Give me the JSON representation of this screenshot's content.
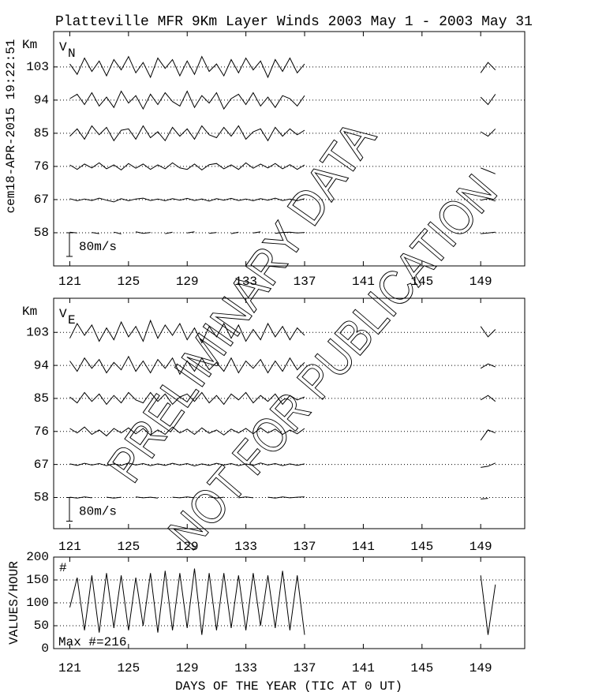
{
  "chart_data": [
    {
      "type": "line",
      "title": "Platteville MFR 9Km Layer Winds 2003 May  1 - 2003 May 31",
      "stamp": "cem18-APR-2015 19:22:51",
      "annotations": [
        "PRELIMINARY DATA",
        "NOT FOR PUBLICATION"
      ],
      "ylabel": "Km",
      "panel_label": "V",
      "panel_label_sub": "N",
      "scale_bar": {
        "value": 80,
        "label": "80m/s"
      },
      "xlim": [
        119.9,
        152
      ],
      "xticks": [
        121,
        125,
        129,
        133,
        137,
        141,
        145,
        149
      ],
      "ylim": [
        49,
        112.6
      ],
      "yticks": [
        58,
        67,
        76,
        85,
        94,
        103
      ],
      "grid": true,
      "x": [
        121,
        121.5,
        122,
        122.5,
        123,
        123.5,
        124,
        124.5,
        125,
        125.5,
        126,
        126.5,
        127,
        127.5,
        128,
        128.5,
        129,
        129.5,
        130,
        130.5,
        131,
        131.5,
        132,
        132.5,
        133,
        133.5,
        134,
        134.5,
        135,
        135.5,
        136,
        136.5,
        137,
        143,
        149,
        149.5,
        150
      ],
      "series": [
        {
          "color": "#000000",
          "values": [
            2,
            -1,
            null,
            1,
            -3,
            null,
            2,
            -4,
            null,
            3,
            -2,
            1,
            null,
            -3,
            2,
            null,
            -1,
            3,
            null,
            -2,
            1,
            null,
            -3,
            2,
            null,
            -1,
            3,
            null,
            -2,
            1,
            2,
            -1,
            1,
            null,
            -3,
            -1,
            2
          ]
        },
        {
          "color": "#000000",
          "values": [
            3,
            -4,
            2,
            -3,
            5,
            -2,
            -8,
            3,
            -4,
            2,
            5,
            -3,
            2,
            -4,
            3,
            -2,
            4,
            -3,
            2,
            -5,
            3,
            -2,
            4,
            -3,
            2,
            -4,
            3,
            -2,
            5,
            -3,
            2,
            -4,
            3,
            null,
            -2,
            3,
            -5
          ]
        },
        {
          "color": "#000000",
          "values": [
            5,
            -10,
            8,
            -5,
            12,
            -8,
            5,
            -12,
            10,
            -6,
            8,
            -10,
            5,
            -8,
            12,
            -5,
            -10,
            8,
            -12,
            6,
            10,
            -8,
            5,
            -10,
            12,
            -6,
            8,
            -5,
            10,
            -8,
            6,
            -10,
            5,
            null,
            -5,
            -15,
            -25
          ]
        },
        {
          "color": "#000000",
          "values": [
            -10,
            15,
            -20,
            25,
            -5,
            20,
            -25,
            10,
            15,
            -20,
            25,
            -15,
            5,
            -25,
            20,
            -10,
            15,
            -20,
            25,
            -5,
            -15,
            20,
            -10,
            25,
            -20,
            5,
            15,
            -25,
            20,
            -10,
            15,
            -5,
            10,
            null,
            5,
            -10,
            15
          ]
        },
        {
          "color": "#000000",
          "values": [
            5,
            20,
            -15,
            25,
            -20,
            10,
            -25,
            30,
            -10,
            15,
            -30,
            20,
            -15,
            25,
            -5,
            -20,
            30,
            -25,
            15,
            -10,
            25,
            -30,
            5,
            20,
            -15,
            25,
            -20,
            10,
            -25,
            15,
            5,
            -20,
            15,
            null,
            10,
            -15,
            20
          ]
        },
        {
          "color": "#000000",
          "values": [
            10,
            -25,
            30,
            -15,
            20,
            -30,
            25,
            -10,
            35,
            -20,
            15,
            -35,
            30,
            -5,
            25,
            -30,
            20,
            -25,
            35,
            -15,
            10,
            -30,
            25,
            -20,
            30,
            -10,
            20,
            -35,
            25,
            -15,
            30,
            -20,
            10,
            null,
            -20,
            15,
            -10
          ]
        }
      ]
    },
    {
      "type": "line",
      "ylabel": "Km",
      "panel_label": "V",
      "panel_label_sub": "E",
      "scale_bar": {
        "value": 80,
        "label": "80m/s"
      },
      "xlim": [
        119.9,
        152
      ],
      "xticks": [
        121,
        125,
        129,
        133,
        137,
        141,
        145,
        149
      ],
      "ylim": [
        49.5,
        112.3
      ],
      "yticks": [
        58,
        67,
        76,
        85,
        94,
        103
      ],
      "grid": true,
      "x": [
        121,
        121.5,
        122,
        122.5,
        123,
        123.5,
        124,
        124.5,
        125,
        125.5,
        126,
        126.5,
        127,
        127.5,
        128,
        128.5,
        129,
        129.5,
        130,
        130.5,
        131,
        131.5,
        132,
        132.5,
        133,
        133.5,
        134,
        134.5,
        135,
        135.5,
        136,
        136.5,
        137,
        143,
        149,
        149.5,
        150
      ],
      "series": [
        {
          "color": "#000000",
          "values": [
            1,
            -2,
            2,
            -1,
            null,
            1,
            -2,
            1,
            null,
            2,
            -1,
            1,
            -2,
            null,
            1,
            -1,
            2,
            -1,
            null,
            2,
            -2,
            1,
            null,
            -1,
            2,
            -1,
            null,
            1,
            -2,
            2,
            -1,
            1,
            2,
            null,
            -5,
            -3,
            null
          ]
        },
        {
          "color": "#000000",
          "values": [
            2,
            -3,
            4,
            -2,
            3,
            -4,
            2,
            -3,
            5,
            -2,
            3,
            -4,
            2,
            -3,
            4,
            -2,
            3,
            -5,
            2,
            -3,
            4,
            -2,
            3,
            -4,
            2,
            -3,
            5,
            -2,
            3,
            -4,
            2,
            -3,
            2,
            null,
            -10,
            -6,
            5
          ]
        },
        {
          "color": "#000000",
          "values": [
            10,
            -5,
            15,
            -10,
            5,
            -15,
            10,
            -5,
            12,
            -8,
            10,
            -12,
            5,
            -10,
            15,
            -5,
            8,
            -10,
            12,
            -6,
            5,
            -12,
            8,
            -5,
            10,
            -8,
            12,
            -5,
            8,
            -10,
            5,
            -8,
            10,
            null,
            -30,
            5,
            -5
          ]
        },
        {
          "color": "#000000",
          "values": [
            5,
            -15,
            20,
            -10,
            15,
            -20,
            10,
            -15,
            20,
            -5,
            -15,
            20,
            -10,
            15,
            -20,
            5,
            15,
            -10,
            20,
            -15,
            10,
            -20,
            15,
            -5,
            20,
            -15,
            10,
            -10,
            15,
            -20,
            10,
            -5,
            5,
            null,
            -5,
            10,
            -10
          ]
        },
        {
          "color": "#000000",
          "values": [
            15,
            -20,
            25,
            -10,
            20,
            -25,
            10,
            -15,
            30,
            -20,
            15,
            -25,
            20,
            -10,
            25,
            -30,
            15,
            -20,
            25,
            -15,
            10,
            -20,
            25,
            -25,
            15,
            -10,
            20,
            -25,
            15,
            -20,
            25,
            -15,
            10,
            null,
            -10,
            5,
            -5
          ]
        },
        {
          "color": "#000000",
          "values": [
            -20,
            30,
            -10,
            25,
            -30,
            15,
            -25,
            35,
            -15,
            20,
            -30,
            40,
            -20,
            25,
            -10,
            30,
            -25,
            15,
            -35,
            20,
            -15,
            30,
            -20,
            25,
            -30,
            10,
            -25,
            30,
            -15,
            20,
            -25,
            15,
            -10,
            null,
            20,
            -15,
            10
          ]
        }
      ]
    },
    {
      "type": "line",
      "ylabel": "VALUES/HOUR",
      "xlabel": "DAYS OF THE YEAR (TIC AT 0 UT)",
      "panel_label": "#",
      "note": "Max #=216",
      "xlim": [
        119.9,
        152
      ],
      "xticks": [
        121,
        125,
        129,
        133,
        137,
        141,
        145,
        149
      ],
      "ylim": [
        0,
        200
      ],
      "yticks": [
        0,
        50,
        100,
        150,
        200
      ],
      "grid": true,
      "x": [
        121,
        121.5,
        122,
        122.5,
        123,
        123.5,
        124,
        124.5,
        125,
        125.5,
        126,
        126.5,
        127,
        127.5,
        128,
        128.5,
        129,
        129.5,
        130,
        130.5,
        131,
        131.5,
        132,
        132.5,
        133,
        133.5,
        134,
        134.5,
        135,
        135.5,
        136,
        136.5,
        137,
        143,
        149,
        149.5,
        150
      ],
      "series": [
        {
          "color": "#000000",
          "values": [
            90,
            155,
            40,
            160,
            35,
            165,
            45,
            160,
            40,
            155,
            50,
            165,
            35,
            170,
            40,
            165,
            45,
            175,
            30,
            165,
            40,
            165,
            45,
            160,
            40,
            165,
            50,
            160,
            45,
            170,
            40,
            160,
            30,
            null,
            160,
            30,
            140
          ]
        }
      ]
    }
  ]
}
